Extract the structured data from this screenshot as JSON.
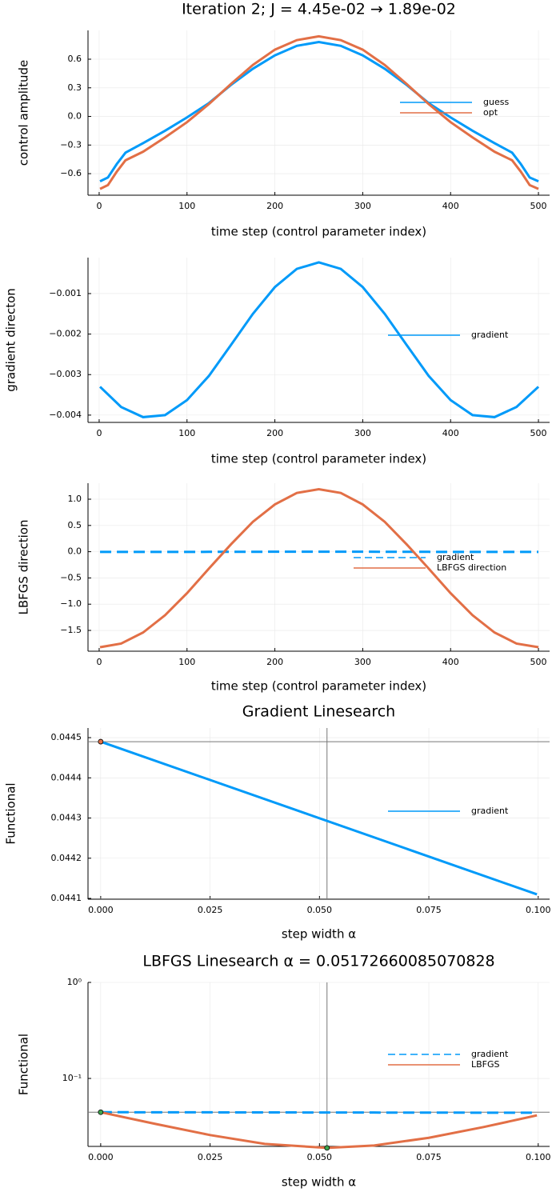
{
  "chart_data": [
    {
      "type": "line",
      "title": "Iteration 2; J = 4.45e-02 → 1.89e-02",
      "xlabel": "time step (control parameter index)",
      "ylabel": "control amplitude",
      "x": [
        1,
        10,
        20,
        30,
        50,
        75,
        100,
        125,
        150,
        175,
        200,
        225,
        250,
        275,
        300,
        325,
        350,
        375,
        400,
        425,
        450,
        470,
        480,
        490,
        500
      ],
      "series": [
        {
          "name": "guess",
          "color": "#009af9",
          "values": [
            -0.68,
            -0.64,
            -0.5,
            -0.38,
            -0.28,
            -0.15,
            -0.01,
            0.14,
            0.33,
            0.5,
            0.64,
            0.74,
            0.78,
            0.74,
            0.64,
            0.5,
            0.33,
            0.14,
            -0.01,
            -0.15,
            -0.28,
            -0.38,
            -0.5,
            -0.64,
            -0.68
          ]
        },
        {
          "name": "opt",
          "color": "#e26f46",
          "values": [
            -0.76,
            -0.72,
            -0.58,
            -0.46,
            -0.37,
            -0.22,
            -0.06,
            0.13,
            0.34,
            0.54,
            0.7,
            0.8,
            0.84,
            0.8,
            0.7,
            0.54,
            0.34,
            0.13,
            -0.06,
            -0.22,
            -0.37,
            -0.46,
            -0.58,
            -0.72,
            -0.76
          ]
        }
      ],
      "xlim": [
        -12.7,
        512.7
      ],
      "xticks": [
        0,
        100,
        200,
        300,
        400,
        500
      ],
      "ylim": [
        -0.826,
        0.902
      ],
      "yticks": [
        {
          "value": -0.6,
          "label": "−0.6"
        },
        {
          "value": -0.3,
          "label": "−0.3"
        },
        {
          "value": 0,
          "label": "0.0"
        },
        0.3,
        0.6
      ],
      "grid": true
    },
    {
      "type": "line",
      "xlabel": "time step (control parameter index)",
      "ylabel": "gradient directon",
      "x": [
        1,
        25,
        50,
        75,
        100,
        125,
        150,
        175,
        200,
        225,
        250,
        275,
        300,
        325,
        350,
        375,
        400,
        425,
        450,
        475,
        500
      ],
      "series": [
        {
          "name": "gradient",
          "color": "#009af9",
          "values": [
            -0.0033,
            -0.0038,
            -0.00405,
            -0.004,
            -0.00363,
            -0.00303,
            -0.00227,
            -0.0015,
            -0.00084,
            -0.00039,
            -0.00023,
            -0.00039,
            -0.00084,
            -0.0015,
            -0.00227,
            -0.00303,
            -0.00363,
            -0.004,
            -0.00405,
            -0.0038,
            -0.0033
          ]
        }
      ],
      "xlim": [
        -12.7,
        512.7
      ],
      "xticks": [
        0,
        100,
        200,
        300,
        400,
        500
      ],
      "ylim": [
        -0.00418,
        -0.000112
      ],
      "yticks": [
        {
          "value": -0.004,
          "label": "−0.004"
        },
        {
          "value": -0.003,
          "label": "−0.003"
        },
        {
          "value": -0.002,
          "label": "−0.002"
        },
        {
          "value": -0.001,
          "label": "−0.001"
        }
      ],
      "grid": true
    },
    {
      "type": "line",
      "xlabel": "time step (control parameter index)",
      "ylabel": "LBFGS direction",
      "x": [
        1,
        25,
        50,
        75,
        100,
        125,
        150,
        175,
        200,
        225,
        250,
        275,
        300,
        325,
        350,
        375,
        400,
        425,
        450,
        475,
        500
      ],
      "series": [
        {
          "name": "gradient",
          "color": "#009af9",
          "dash": true,
          "values": [
            -0.0033,
            -0.0038,
            -0.00405,
            -0.004,
            -0.00363,
            -0.00303,
            -0.00227,
            -0.0015,
            -0.00084,
            -0.00039,
            -0.00023,
            -0.00039,
            -0.00084,
            -0.0015,
            -0.00227,
            -0.00303,
            -0.00363,
            -0.004,
            -0.00405,
            -0.0038,
            -0.0033
          ]
        },
        {
          "name": "LBFGS direction",
          "color": "#e26f46",
          "values": [
            -1.82,
            -1.75,
            -1.54,
            -1.21,
            -0.79,
            -0.32,
            0.14,
            0.57,
            0.9,
            1.12,
            1.19,
            1.12,
            0.9,
            0.57,
            0.14,
            -0.32,
            -0.79,
            -1.21,
            -1.54,
            -1.75,
            -1.82
          ]
        }
      ],
      "xlim": [
        -12.7,
        512.7
      ],
      "xticks": [
        0,
        100,
        200,
        300,
        400,
        500
      ],
      "ylim": [
        -1.896,
        1.305
      ],
      "yticks": [
        {
          "value": -1.5,
          "label": "−1.5"
        },
        {
          "value": -1,
          "label": "−1.0"
        },
        {
          "value": -0.5,
          "label": "−0.5"
        },
        {
          "value": 0,
          "label": "0.0"
        },
        0.5,
        {
          "value": 1,
          "label": "1.0"
        }
      ],
      "grid": true
    },
    {
      "type": "line",
      "title": "Gradient Linesearch",
      "xlabel": "step width α",
      "ylabel": "Functional",
      "x": [
        0,
        0.0997
      ],
      "series": [
        {
          "name": "gradient",
          "color": "#009af9",
          "values": [
            0.04449,
            0.04411
          ]
        }
      ],
      "points": [
        {
          "x": 0,
          "y": 0.04449,
          "color": "#e26f46"
        }
      ],
      "vline": 0.05172660085070828,
      "hline": 0.04449,
      "xlim": [
        -0.0029,
        0.1026
      ],
      "xticks": [
        {
          "value": 0,
          "label": "0.000"
        },
        {
          "value": 0.025,
          "label": "0.025"
        },
        {
          "value": 0.05,
          "label": "0.050"
        },
        {
          "value": 0.075,
          "label": "0.075"
        },
        {
          "value": 0.1,
          "label": "0.100"
        }
      ],
      "ylim": [
        0.044098,
        0.044524
      ],
      "yticks": [
        0.0441,
        0.0442,
        0.0443,
        0.0444,
        0.0445
      ],
      "grid": true
    },
    {
      "type": "line",
      "title": "LBFGS Linesearch α = 0.05172660085070828",
      "xlabel": "step width α",
      "ylabel": "Functional",
      "yscale": "log",
      "x": [
        0,
        0.0125,
        0.025,
        0.0375,
        0.0517,
        0.0625,
        0.075,
        0.0875,
        0.0997
      ],
      "series": [
        {
          "name": "gradient",
          "color": "#009af9",
          "dash": true,
          "values": [
            0.04449,
            0.04442,
            0.04435,
            0.04428,
            0.0442,
            0.04414,
            0.04407,
            0.044,
            0.04393
          ]
        },
        {
          "name": "LBFGS",
          "color": "#e26f46",
          "values": [
            0.04449,
            0.0336,
            0.02573,
            0.02083,
            0.0189,
            0.02002,
            0.0241,
            0.03117,
            0.04124
          ]
        }
      ],
      "points": [
        {
          "x": 0,
          "y": 0.04449,
          "color": "#3da44d"
        },
        {
          "x": 0.05172660085070828,
          "y": 0.0189,
          "color": "#3da44d"
        }
      ],
      "vline": 0.05172660085070828,
      "hline": 0.04449,
      "xlim": [
        -0.0029,
        0.1026
      ],
      "xticks": [
        {
          "value": 0,
          "label": "0.000"
        },
        {
          "value": 0.025,
          "label": "0.025"
        },
        {
          "value": 0.05,
          "label": "0.050"
        },
        {
          "value": 0.075,
          "label": "0.075"
        },
        {
          "value": 0.1,
          "label": "0.100"
        }
      ],
      "ylim": [
        0.0196,
        1
      ],
      "yticks": [
        {
          "value": 0.1,
          "label": "10⁻¹"
        },
        {
          "value": 1,
          "label": "10⁰"
        }
      ],
      "grid": true
    }
  ]
}
